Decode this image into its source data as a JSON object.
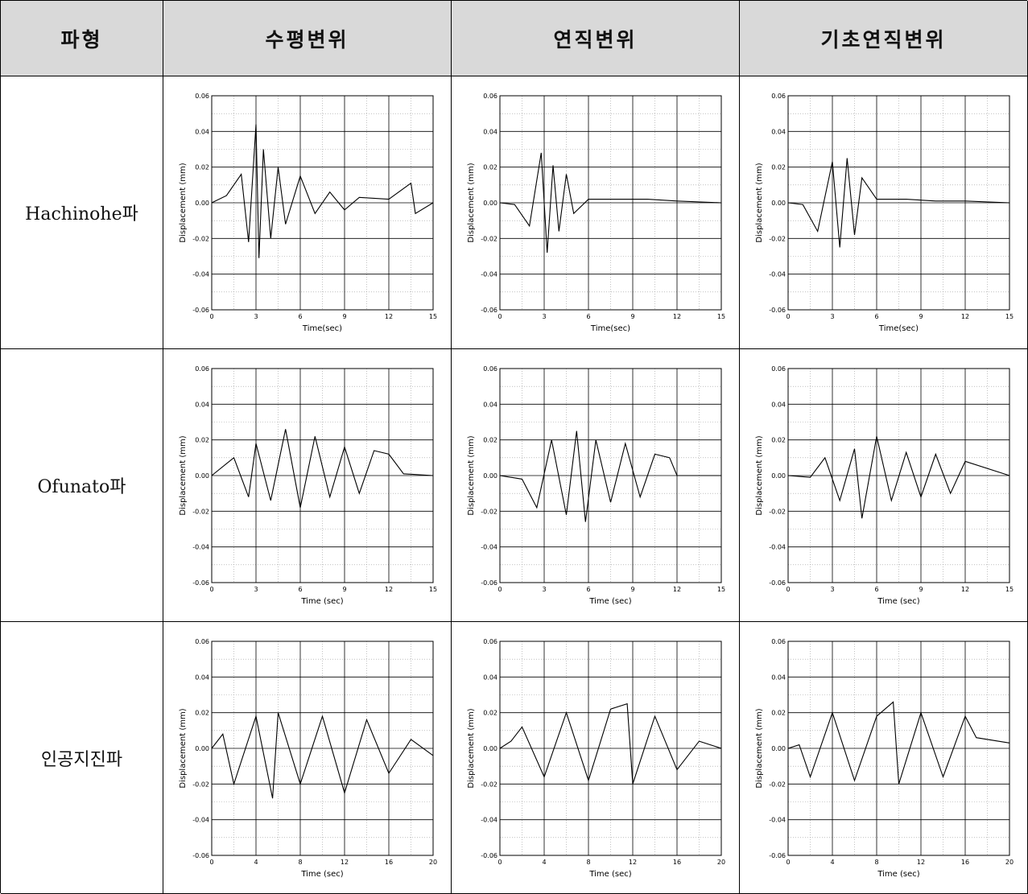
{
  "table": {
    "headers": [
      "파형",
      "수평변위",
      "연직변위",
      "기초연직변위"
    ],
    "rows": [
      {
        "label": "Hachinohe파",
        "xlabel": "Time(sec)"
      },
      {
        "label": "Ofunato파",
        "xlabel": "Time (sec)"
      },
      {
        "label": "인공지진파",
        "xlabel": "Time (sec)"
      }
    ]
  },
  "chart_data": [
    {
      "type": "line",
      "row": "Hachinohe파",
      "column": "수평변위",
      "title": "",
      "xlabel": "Time(sec)",
      "ylabel": "Displacement (mm)",
      "xlim": [
        0,
        15
      ],
      "ylim": [
        -0.06,
        0.06
      ],
      "xticks": [
        0,
        3,
        6,
        9,
        12,
        15
      ],
      "yticks": [
        -0.06,
        -0.04,
        -0.02,
        0.0,
        0.02,
        0.04,
        0.06
      ],
      "grid": true,
      "x": [
        0,
        1,
        2,
        2.5,
        3,
        3.2,
        3.5,
        4,
        4.5,
        5,
        6,
        7,
        8,
        9,
        10,
        12,
        13.5,
        13.8,
        15
      ],
      "y": [
        0,
        0.004,
        0.016,
        -0.022,
        0.044,
        -0.031,
        0.03,
        -0.02,
        0.02,
        -0.012,
        0.015,
        -0.006,
        0.006,
        -0.004,
        0.003,
        0.002,
        0.011,
        -0.006,
        0
      ]
    },
    {
      "type": "line",
      "row": "Hachinohe파",
      "column": "연직변위",
      "title": "",
      "xlabel": "Time(sec)",
      "ylabel": "Displacement (mm)",
      "xlim": [
        0,
        15
      ],
      "ylim": [
        -0.06,
        0.06
      ],
      "xticks": [
        0,
        3,
        6,
        9,
        12,
        15
      ],
      "yticks": [
        -0.06,
        -0.04,
        -0.02,
        0.0,
        0.02,
        0.04,
        0.06
      ],
      "grid": true,
      "x": [
        0,
        1,
        2,
        2.8,
        3.2,
        3.6,
        4,
        4.5,
        5,
        6,
        8,
        10,
        12,
        15
      ],
      "y": [
        0,
        -0.001,
        -0.013,
        0.028,
        -0.028,
        0.021,
        -0.016,
        0.016,
        -0.006,
        0.002,
        0.002,
        0.002,
        0.001,
        0
      ]
    },
    {
      "type": "line",
      "row": "Hachinohe파",
      "column": "기초연직변위",
      "title": "",
      "xlabel": "Time(sec)",
      "ylabel": "Displacement (mm)",
      "xlim": [
        0,
        15
      ],
      "ylim": [
        -0.06,
        0.06
      ],
      "xticks": [
        0,
        3,
        6,
        9,
        12,
        15
      ],
      "yticks": [
        -0.06,
        -0.04,
        -0.02,
        0.0,
        0.02,
        0.04,
        0.06
      ],
      "grid": true,
      "x": [
        0,
        1,
        2,
        3,
        3.5,
        4,
        4.5,
        5,
        6,
        8,
        10,
        12,
        15
      ],
      "y": [
        0,
        -0.001,
        -0.016,
        0.023,
        -0.025,
        0.025,
        -0.018,
        0.014,
        0.002,
        0.002,
        0.001,
        0.001,
        0
      ]
    },
    {
      "type": "line",
      "row": "Ofunato파",
      "column": "수평변위",
      "title": "",
      "xlabel": "Time (sec)",
      "ylabel": "Displacement (mm)",
      "xlim": [
        0,
        15
      ],
      "ylim": [
        -0.06,
        0.06
      ],
      "xticks": [
        0,
        3,
        6,
        9,
        12,
        15
      ],
      "yticks": [
        -0.06,
        -0.04,
        -0.02,
        0.0,
        0.02,
        0.04,
        0.06
      ],
      "grid": true,
      "x": [
        0,
        1.5,
        2.5,
        3,
        4,
        5,
        6,
        7,
        8,
        9,
        10,
        11,
        12,
        13,
        15
      ],
      "y": [
        0,
        0.01,
        -0.012,
        0.018,
        -0.014,
        0.026,
        -0.018,
        0.022,
        -0.012,
        0.016,
        -0.01,
        0.014,
        0.012,
        0.001,
        0
      ]
    },
    {
      "type": "line",
      "row": "Ofunato파",
      "column": "연직변위",
      "title": "",
      "xlabel": "Time (sec)",
      "ylabel": "Displacement (mm)",
      "xlim": [
        0,
        15
      ],
      "ylim": [
        -0.06,
        0.06
      ],
      "xticks": [
        0,
        3,
        6,
        9,
        12,
        15
      ],
      "yticks": [
        -0.06,
        -0.04,
        -0.02,
        0.0,
        0.02,
        0.04,
        0.06
      ],
      "grid": true,
      "x": [
        0,
        1.5,
        2.5,
        3.5,
        4.5,
        5.2,
        5.8,
        6.5,
        7.5,
        8.5,
        9.5,
        10.5,
        11.5,
        12,
        15
      ],
      "y": [
        0,
        -0.002,
        -0.018,
        0.02,
        -0.022,
        0.025,
        -0.026,
        0.02,
        -0.015,
        0.018,
        -0.012,
        0.012,
        0.01,
        0,
        0
      ]
    },
    {
      "type": "line",
      "row": "Ofunato파",
      "column": "기초연직변위",
      "title": "",
      "xlabel": "Time (sec)",
      "ylabel": "Displacement (mm)",
      "xlim": [
        0,
        15
      ],
      "ylim": [
        -0.06,
        0.06
      ],
      "xticks": [
        0,
        3,
        6,
        9,
        12,
        15
      ],
      "yticks": [
        -0.06,
        -0.04,
        -0.02,
        0.0,
        0.02,
        0.04,
        0.06
      ],
      "grid": true,
      "x": [
        0,
        1.5,
        2.5,
        3.5,
        4.5,
        5,
        6,
        7,
        8,
        9,
        10,
        11,
        12,
        15
      ],
      "y": [
        0,
        -0.001,
        0.01,
        -0.014,
        0.015,
        -0.024,
        0.022,
        -0.014,
        0.013,
        -0.012,
        0.012,
        -0.01,
        0.008,
        0
      ]
    },
    {
      "type": "line",
      "row": "인공지진파",
      "column": "수평변위",
      "title": "",
      "xlabel": "Time (sec)",
      "ylabel": "Displacement (mm)",
      "xlim": [
        0,
        20
      ],
      "ylim": [
        -0.06,
        0.06
      ],
      "xticks": [
        0,
        4,
        8,
        12,
        16,
        20
      ],
      "yticks": [
        -0.06,
        -0.04,
        -0.02,
        0.0,
        0.02,
        0.04,
        0.06
      ],
      "grid": true,
      "x": [
        0,
        1,
        2,
        4,
        5.5,
        6,
        8,
        10,
        12,
        14,
        16,
        18,
        20
      ],
      "y": [
        0,
        0.008,
        -0.02,
        0.018,
        -0.028,
        0.02,
        -0.02,
        0.018,
        -0.025,
        0.016,
        -0.014,
        0.005,
        -0.004
      ]
    },
    {
      "type": "line",
      "row": "인공지진파",
      "column": "연직변위",
      "title": "",
      "xlabel": "Time (sec)",
      "ylabel": "Displacement (mm)",
      "xlim": [
        0,
        20
      ],
      "ylim": [
        -0.06,
        0.06
      ],
      "xticks": [
        0,
        4,
        8,
        12,
        16,
        20
      ],
      "yticks": [
        -0.06,
        -0.04,
        -0.02,
        0.0,
        0.02,
        0.04,
        0.06
      ],
      "grid": true,
      "x": [
        0,
        1,
        2,
        4,
        6,
        8,
        10,
        11.5,
        12,
        14,
        16,
        18,
        20
      ],
      "y": [
        0,
        0.004,
        0.012,
        -0.016,
        0.02,
        -0.018,
        0.022,
        0.025,
        -0.02,
        0.018,
        -0.012,
        0.004,
        0
      ]
    },
    {
      "type": "line",
      "row": "인공지진파",
      "column": "기초연직변위",
      "title": "",
      "xlabel": "Time (sec)",
      "ylabel": "Displacement (mm)",
      "xlim": [
        0,
        20
      ],
      "ylim": [
        -0.06,
        0.06
      ],
      "xticks": [
        0,
        4,
        8,
        12,
        16,
        20
      ],
      "yticks": [
        -0.06,
        -0.04,
        -0.02,
        0.0,
        0.02,
        0.04,
        0.06
      ],
      "grid": true,
      "x": [
        0,
        1,
        2,
        4,
        6,
        8,
        9.5,
        10,
        12,
        14,
        16,
        17,
        20
      ],
      "y": [
        0,
        0.002,
        -0.016,
        0.02,
        -0.018,
        0.018,
        0.026,
        -0.02,
        0.02,
        -0.016,
        0.018,
        0.006,
        0.003
      ]
    }
  ]
}
